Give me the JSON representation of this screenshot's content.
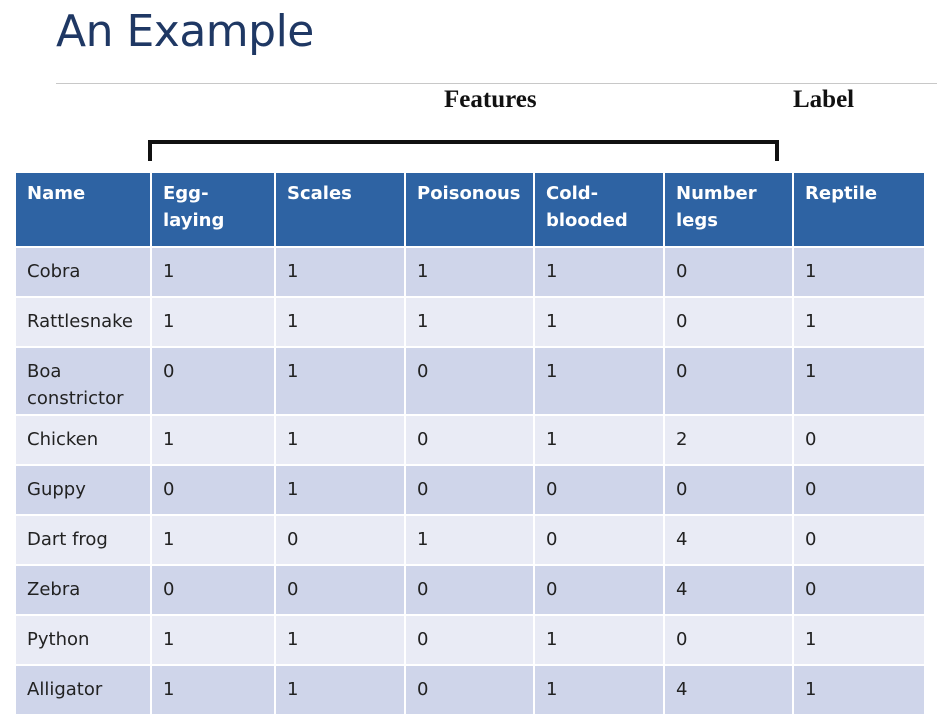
{
  "slide": {
    "title": "An Example",
    "features_heading": "Features",
    "label_heading": "Label"
  },
  "table": {
    "columns": [
      "Name",
      "Egg-laying",
      "Scales",
      "Poisonous",
      "Cold-blooded",
      "Number legs",
      "Reptile"
    ],
    "rows": [
      [
        "Cobra",
        "1",
        "1",
        "1",
        "1",
        "0",
        "1"
      ],
      [
        "Rattlesnake",
        "1",
        "1",
        "1",
        "1",
        "0",
        "1"
      ],
      [
        "Boa constrictor",
        "0",
        "1",
        "0",
        "1",
        "0",
        "1"
      ],
      [
        "Chicken",
        "1",
        "1",
        "0",
        "1",
        "2",
        "0"
      ],
      [
        "Guppy",
        "0",
        "1",
        "0",
        "0",
        "0",
        "0"
      ],
      [
        "Dart frog",
        "1",
        "0",
        "1",
        "0",
        "4",
        "0"
      ],
      [
        "Zebra",
        "0",
        "0",
        "0",
        "0",
        "4",
        "0"
      ],
      [
        "Python",
        "1",
        "1",
        "0",
        "1",
        "0",
        "1"
      ],
      [
        "Alligator",
        "1",
        "1",
        "0",
        "1",
        "4",
        "1"
      ]
    ]
  },
  "colors": {
    "title": "#1f3864",
    "header_bg": "#2e63a3",
    "row_dark": "#cfd5ea",
    "row_light": "#e9ebf5"
  }
}
